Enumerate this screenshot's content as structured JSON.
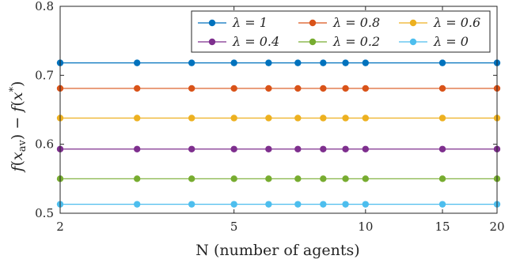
{
  "chart_data": {
    "type": "line",
    "title": "",
    "xlabel": "N (number of agents)",
    "ylabel": "f(x_av) − f(x*)",
    "x_scale": "log",
    "xlim": [
      2,
      20
    ],
    "ylim": [
      0.5,
      0.8
    ],
    "x_ticks": [
      2,
      5,
      10,
      15,
      20
    ],
    "x_tick_labels": [
      "2",
      "5",
      "10",
      "15",
      "20"
    ],
    "y_ticks": [
      0.5,
      0.6,
      0.7,
      0.8
    ],
    "y_tick_labels": [
      "0.5",
      "0.6",
      "0.7",
      "0.8"
    ],
    "grid": false,
    "legend_position": "top-right",
    "legend_columns": 3,
    "x": [
      2,
      3,
      4,
      5,
      6,
      7,
      8,
      9,
      10,
      15,
      20
    ],
    "series": [
      {
        "name": "λ = 1",
        "color": "#0072BD",
        "values": [
          0.718,
          0.718,
          0.718,
          0.718,
          0.718,
          0.718,
          0.718,
          0.718,
          0.718,
          0.718,
          0.718
        ]
      },
      {
        "name": "λ = 0.8",
        "color": "#D95319",
        "values": [
          0.681,
          0.681,
          0.681,
          0.681,
          0.681,
          0.681,
          0.681,
          0.681,
          0.681,
          0.681,
          0.681
        ]
      },
      {
        "name": "λ = 0.6",
        "color": "#EDB120",
        "values": [
          0.638,
          0.638,
          0.638,
          0.638,
          0.638,
          0.638,
          0.638,
          0.638,
          0.638,
          0.638,
          0.638
        ]
      },
      {
        "name": "λ = 0.4",
        "color": "#7E2F8E",
        "values": [
          0.593,
          0.593,
          0.593,
          0.593,
          0.593,
          0.593,
          0.593,
          0.593,
          0.593,
          0.593,
          0.593
        ]
      },
      {
        "name": "λ = 0.2",
        "color": "#77AC30",
        "values": [
          0.55,
          0.55,
          0.55,
          0.55,
          0.55,
          0.55,
          0.55,
          0.55,
          0.55,
          0.55,
          0.55
        ]
      },
      {
        "name": "λ = 0",
        "color": "#4DBEEE",
        "values": [
          0.513,
          0.513,
          0.513,
          0.513,
          0.513,
          0.513,
          0.513,
          0.513,
          0.513,
          0.513,
          0.513
        ]
      }
    ]
  }
}
